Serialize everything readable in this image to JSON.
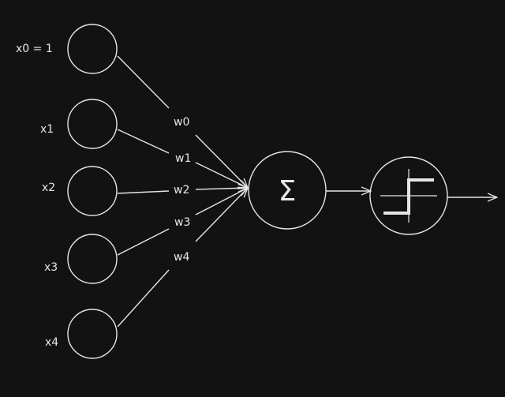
{
  "colors": {
    "background": "#121212",
    "stroke": "#e6e6e6"
  },
  "inputs": [
    {
      "label": "x0 = 1"
    },
    {
      "label": "x1"
    },
    {
      "label": "x2"
    },
    {
      "label": "x3"
    },
    {
      "label": "x4"
    }
  ],
  "weights": [
    "w0",
    "w1",
    "w2",
    "w3",
    "w4"
  ],
  "summation": {
    "symbol": "Σ"
  },
  "activation": {
    "icon": "step-function-icon"
  }
}
